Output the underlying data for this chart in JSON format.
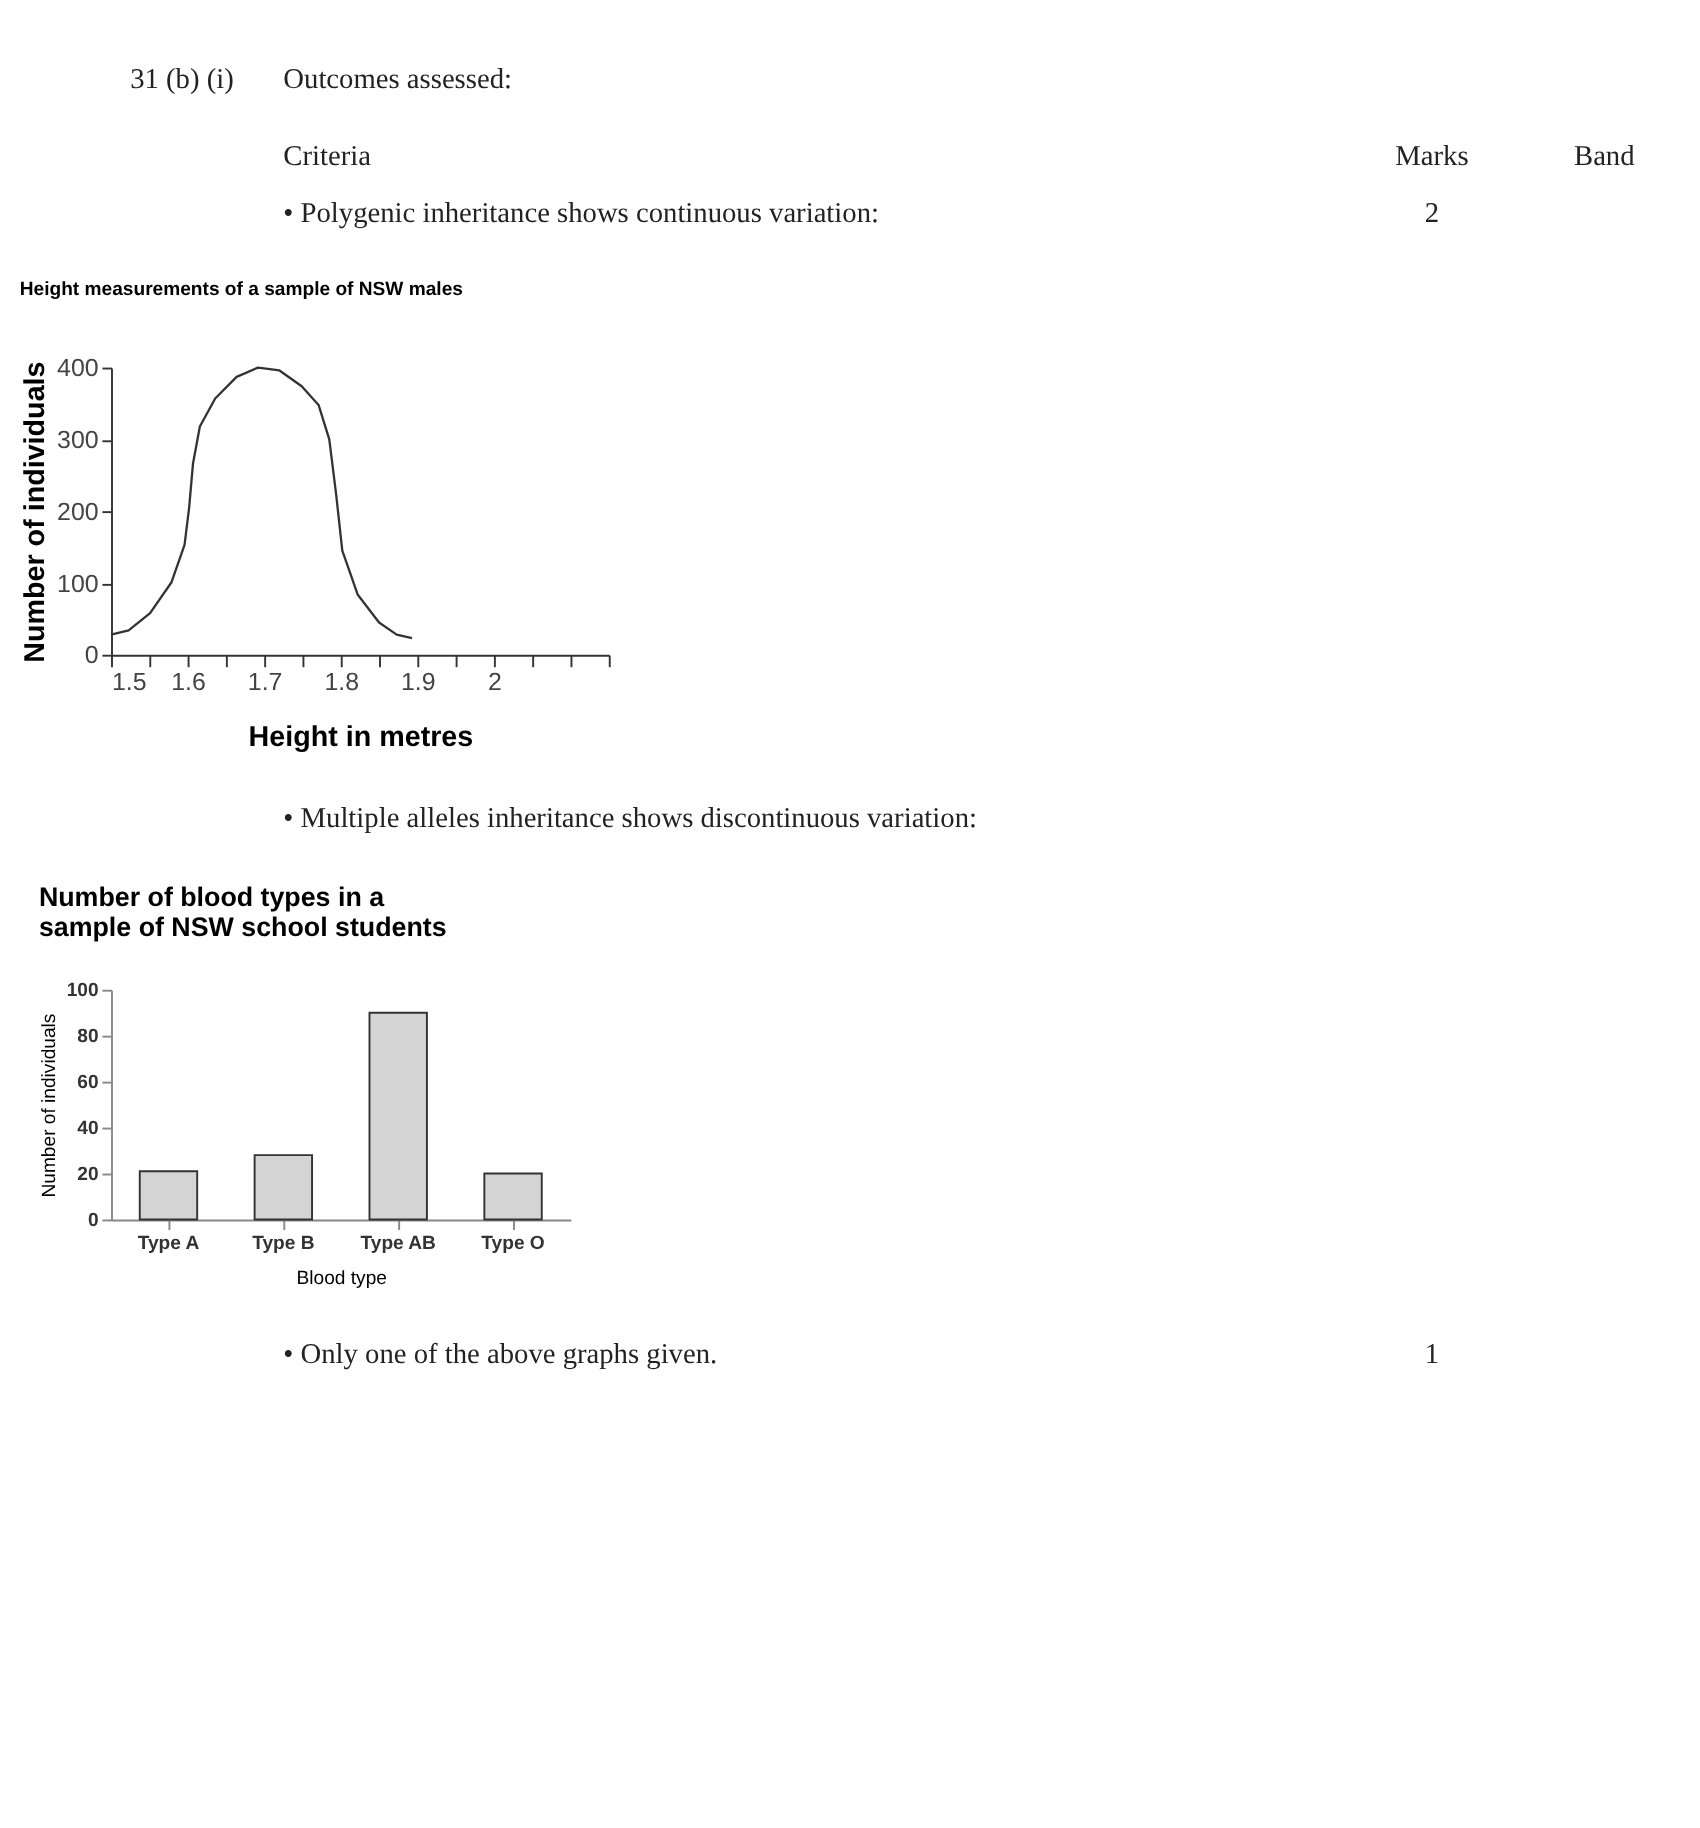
{
  "chart_data": [
    {
      "type": "line",
      "title": "Height measurements of a sample of NSW males",
      "xlabel": "Height in metres",
      "ylabel": "Number of individuals",
      "annotations": [
        "31 (b) (i)",
        "Outcomes assessed:",
        "Criteria",
        "Marks",
        "Band",
        "• Polygenic inheritance shows continuous variation:",
        "2"
      ],
      "series": [
        {
          "color": "#333333",
          "x": [
            1.5,
            1.523,
            1.551,
            1.579,
            1.596,
            1.602,
            1.607,
            1.616,
            1.636,
            1.664,
            1.692,
            1.72,
            1.749,
            1.771,
            1.785,
            1.794,
            1.802,
            1.822,
            1.85,
            1.873,
            1.893
          ],
          "values": [
            28,
            34,
            58,
            101,
            153,
            205,
            266,
            318,
            357,
            387,
            400,
            396,
            374,
            348,
            300,
            223,
            145,
            84,
            45,
            28,
            23
          ]
        }
      ],
      "xlim": [
        1.5,
        2.15
      ],
      "xticks": [
        1.5,
        {
          "value": 1.55,
          "label": null
        },
        1.6,
        {
          "value": 1.65,
          "label": null
        },
        1.7,
        {
          "value": 1.75,
          "label": null
        },
        1.8,
        {
          "value": 1.85,
          "label": null
        },
        1.9,
        {
          "value": 1.95,
          "label": null
        },
        {
          "value": 2.0,
          "label": "2"
        },
        {
          "value": 2.05,
          "label": null
        },
        {
          "value": 2.1,
          "label": null
        },
        {
          "value": 2.15,
          "label": null
        }
      ],
      "ylim": [
        0,
        400
      ],
      "yticks": [
        0,
        100,
        200,
        300,
        400
      ],
      "grid": false,
      "marker": "none",
      "line_style": "solid"
    },
    {
      "type": "bar",
      "title": "Number of blood types in a sample of NSW school students",
      "xlabel": "Blood type",
      "ylabel": "Number of individuals",
      "annotations": [
        "• Multiple alleles inheritance shows discontinuous variation:",
        "• Only one of the above graphs given.",
        "1"
      ],
      "categories": [
        "Type A",
        "Type B",
        "Type AB",
        "Type O"
      ],
      "series": [
        {
          "color": "#d4d4d4",
          "values": [
            21,
            28,
            90,
            20
          ]
        }
      ],
      "ylim": [
        0,
        100
      ],
      "yticks": [
        0,
        20,
        40,
        60,
        80,
        100
      ],
      "grid": false
    }
  ]
}
